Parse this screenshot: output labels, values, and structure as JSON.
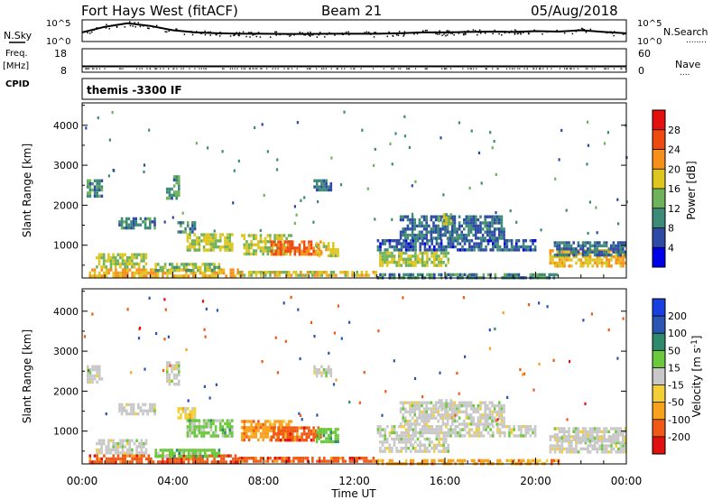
{
  "header": {
    "station": "Fort Hays West (fitACF)",
    "beam": "Beam 21",
    "date": "05/Aug/2018"
  },
  "left_labels": {
    "nsky": "N.Sky",
    "freq": "Freq.",
    "freq_unit": "[MHz]",
    "cpid": "CPID"
  },
  "right_labels": {
    "nsearch": "N.Search",
    "nave": "Nave",
    "nsearch_dots": "........",
    "nave_dots": "...."
  },
  "cpid_value": "themis -3300 IF",
  "chart_data": [
    {
      "type": "line",
      "panel": "noise",
      "left_ticks": [
        "10^5",
        "10^0"
      ],
      "right_ticks": [
        "10^5",
        "10^0"
      ],
      "series": [
        {
          "x": [
            0,
            1,
            2,
            3,
            4,
            5,
            6,
            7,
            8,
            9,
            10,
            11,
            12,
            13,
            14,
            15,
            16,
            17,
            18,
            19,
            20,
            21,
            22,
            23,
            24
          ],
          "y": [
            0.42,
            0.68,
            0.84,
            0.72,
            0.52,
            0.42,
            0.38,
            0.36,
            0.36,
            0.35,
            0.35,
            0.36,
            0.36,
            0.36,
            0.38,
            0.42,
            0.42,
            0.44,
            0.46,
            0.44,
            0.48,
            0.46,
            0.52,
            0.44,
            0.38
          ]
        }
      ]
    },
    {
      "type": "line",
      "panel": "frequency-nave",
      "left_ticks": [
        "18",
        "8"
      ],
      "right_ticks": [
        "60",
        "0"
      ],
      "series": [
        {
          "x": [
            0,
            24
          ],
          "y": [
            10.5,
            10.5
          ]
        }
      ]
    },
    {
      "type": "heatmap",
      "panel": "power",
      "ylabel": "Slant Range [km]",
      "yticks": [
        "1000",
        "2000",
        "3000",
        "4000"
      ],
      "ylim": [
        180,
        4560
      ],
      "xlim": [
        0,
        24
      ],
      "colorbar": {
        "label": "Power [dB]",
        "ticks": [
          "4",
          "8",
          "12",
          "16",
          "20",
          "24",
          "28"
        ],
        "range": [
          0,
          32
        ],
        "colors": [
          "#0000e8",
          "#2c4aa6",
          "#3e8a78",
          "#6fb25c",
          "#dfc520",
          "#f7901a",
          "#ee4a10",
          "#e41010"
        ]
      },
      "regions": [
        {
          "t": [
            0.3,
            6.9
          ],
          "r": [
            260,
            420
          ],
          "v": 20
        },
        {
          "t": [
            6.9,
            13.0
          ],
          "r": [
            240,
            360
          ],
          "v": 18
        },
        {
          "t": [
            13.0,
            21.0
          ],
          "r": [
            220,
            300
          ],
          "v": 10
        },
        {
          "t": [
            0.6,
            2.8
          ],
          "r": [
            480,
            800
          ],
          "v": 16
        },
        {
          "t": [
            3.2,
            6.0
          ],
          "r": [
            360,
            560
          ],
          "v": 14
        },
        {
          "t": [
            1.6,
            3.2
          ],
          "r": [
            1400,
            1700
          ],
          "v": 10
        },
        {
          "t": [
            4.2,
            5.0
          ],
          "r": [
            1300,
            1600
          ],
          "v": 10
        },
        {
          "t": [
            4.6,
            6.6
          ],
          "r": [
            880,
            1300
          ],
          "v": 16
        },
        {
          "t": [
            7.0,
            9.2
          ],
          "r": [
            760,
            1280
          ],
          "v": 16
        },
        {
          "t": [
            8.3,
            10.5
          ],
          "r": [
            760,
            1120
          ],
          "v": 24
        },
        {
          "t": [
            10.3,
            11.3
          ],
          "r": [
            700,
            1080
          ],
          "v": 18
        },
        {
          "t": [
            0.2,
            0.9
          ],
          "r": [
            2250,
            2650
          ],
          "v": 10
        },
        {
          "t": [
            3.7,
            4.3
          ],
          "r": [
            2200,
            2750
          ],
          "v": 11
        },
        {
          "t": [
            10.2,
            11.0
          ],
          "r": [
            2350,
            2650
          ],
          "v": 8
        },
        {
          "t": [
            13.1,
            16.2
          ],
          "r": [
            480,
            840
          ],
          "v": 16
        },
        {
          "t": [
            13.0,
            20.0
          ],
          "r": [
            880,
            1150
          ],
          "v": 7
        },
        {
          "t": [
            14.0,
            18.6
          ],
          "r": [
            1200,
            1750
          ],
          "v": 8
        },
        {
          "t": [
            15.7,
            16.3
          ],
          "r": [
            1500,
            1800
          ],
          "v": 14
        },
        {
          "t": [
            20.6,
            24.0
          ],
          "r": [
            450,
            900
          ],
          "v": 20
        },
        {
          "t": [
            20.8,
            24.0
          ],
          "r": [
            780,
            1100
          ],
          "v": 8
        }
      ]
    },
    {
      "type": "heatmap",
      "panel": "velocity",
      "ylabel": "Slant Range [km]",
      "yticks": [
        "1000",
        "2000",
        "3000",
        "4000"
      ],
      "ylim": [
        180,
        4560
      ],
      "xlim": [
        0,
        24
      ],
      "xlabel": "Time UT",
      "xticks": [
        "00:00",
        "04:00",
        "08:00",
        "12:00",
        "16:00",
        "20:00",
        "00:00"
      ],
      "colorbar": {
        "label": "Velocity [m s^-1]",
        "ticks": [
          "-200",
          "-100",
          "-50",
          "-15",
          "15",
          "50",
          "100",
          "200"
        ],
        "colors": [
          "#e01010",
          "#f05a14",
          "#f7a11c",
          "#f2cf36",
          "#c8c8c8",
          "#6cc83c",
          "#2e8a6a",
          "#2b55b5",
          "#1a3fe0"
        ]
      },
      "regions": [
        {
          "t": [
            0.3,
            6.9
          ],
          "r": [
            260,
            420
          ],
          "v": 1
        },
        {
          "t": [
            6.9,
            13.0
          ],
          "r": [
            240,
            360
          ],
          "v": 1
        },
        {
          "t": [
            13.0,
            21.0
          ],
          "r": [
            220,
            300
          ],
          "v": 2
        },
        {
          "t": [
            0.6,
            2.8
          ],
          "r": [
            480,
            800
          ],
          "v": 4
        },
        {
          "t": [
            3.2,
            6.0
          ],
          "r": [
            360,
            560
          ],
          "v": 5
        },
        {
          "t": [
            1.6,
            3.2
          ],
          "r": [
            1400,
            1700
          ],
          "v": 4
        },
        {
          "t": [
            4.2,
            5.0
          ],
          "r": [
            1300,
            1600
          ],
          "v": 3
        },
        {
          "t": [
            4.6,
            6.6
          ],
          "r": [
            880,
            1300
          ],
          "v": 5
        },
        {
          "t": [
            7.0,
            9.2
          ],
          "r": [
            760,
            1280
          ],
          "v": 2
        },
        {
          "t": [
            8.3,
            10.5
          ],
          "r": [
            760,
            1120
          ],
          "v": 1
        },
        {
          "t": [
            10.3,
            11.3
          ],
          "r": [
            700,
            1080
          ],
          "v": 5
        },
        {
          "t": [
            0.2,
            0.9
          ],
          "r": [
            2250,
            2650
          ],
          "v": 4
        },
        {
          "t": [
            3.7,
            4.3
          ],
          "r": [
            2200,
            2750
          ],
          "v": 4
        },
        {
          "t": [
            10.2,
            11.0
          ],
          "r": [
            2350,
            2650
          ],
          "v": 4
        },
        {
          "t": [
            13.1,
            16.2
          ],
          "r": [
            480,
            840
          ],
          "v": 4
        },
        {
          "t": [
            13.0,
            20.0
          ],
          "r": [
            880,
            1150
          ],
          "v": 4
        },
        {
          "t": [
            14.0,
            18.6
          ],
          "r": [
            1200,
            1750
          ],
          "v": 4
        },
        {
          "t": [
            15.7,
            16.3
          ],
          "r": [
            1500,
            1800
          ],
          "v": 4
        },
        {
          "t": [
            20.6,
            24.0
          ],
          "r": [
            450,
            900
          ],
          "v": 4
        },
        {
          "t": [
            20.8,
            24.0
          ],
          "r": [
            780,
            1100
          ],
          "v": 4
        }
      ]
    }
  ]
}
